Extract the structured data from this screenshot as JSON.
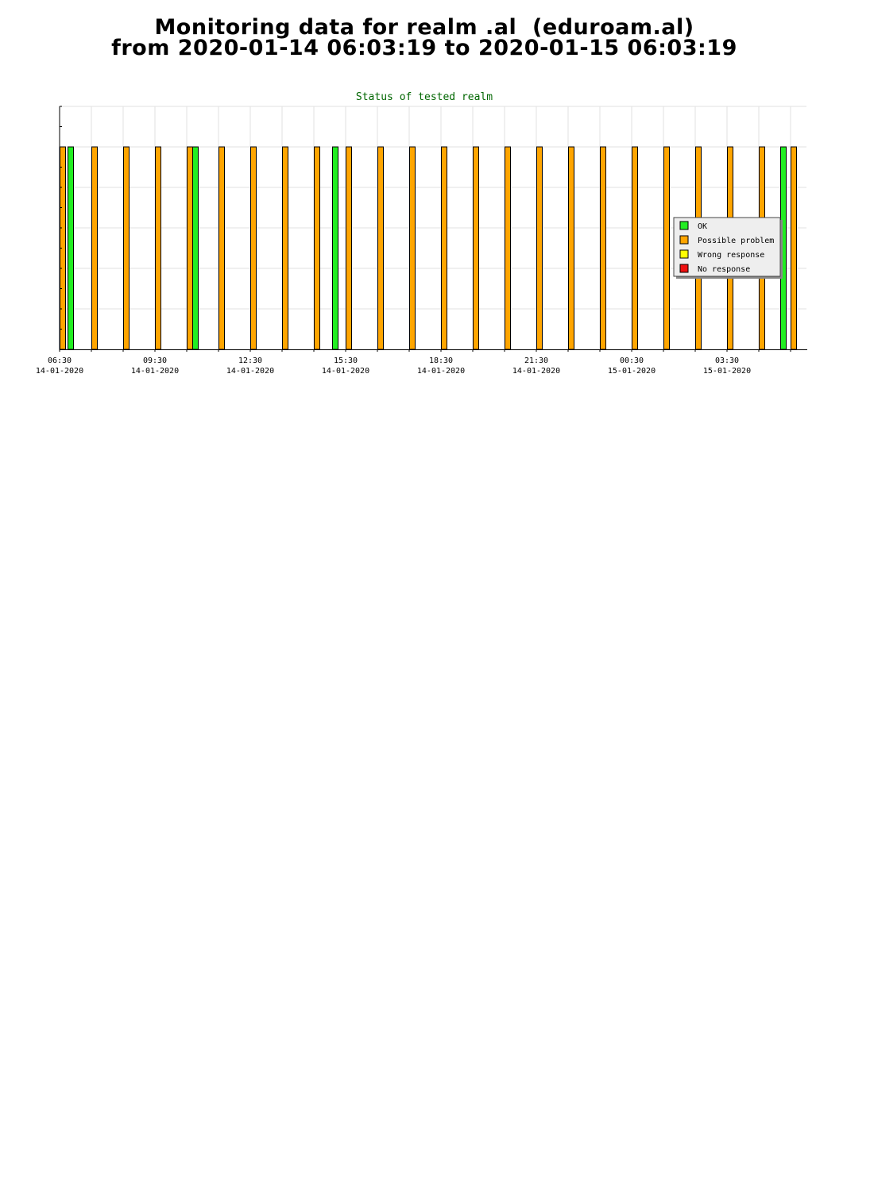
{
  "header": {
    "title_line1": "Monitoring data for realm .al  (eduroam.al)",
    "title_line2": "from 2020-01-14 06:03:19 to 2020-01-15 06:03:19"
  },
  "chart_data": {
    "type": "bar",
    "title": "Status of tested realm",
    "x_range": [
      "2020-01-14 06:30",
      "2020-01-15 06:00"
    ],
    "ylim": [
      0,
      1.2
    ],
    "grid": true,
    "legend_position": "right",
    "x_ticks": [
      {
        "time": "06:30",
        "date": "14-01-2020",
        "x": "2020-01-14 06:30"
      },
      {
        "time": "09:30",
        "date": "14-01-2020",
        "x": "2020-01-14 09:30"
      },
      {
        "time": "12:30",
        "date": "14-01-2020",
        "x": "2020-01-14 12:30"
      },
      {
        "time": "15:30",
        "date": "14-01-2020",
        "x": "2020-01-14 15:30"
      },
      {
        "time": "18:30",
        "date": "14-01-2020",
        "x": "2020-01-14 18:30"
      },
      {
        "time": "21:30",
        "date": "14-01-2020",
        "x": "2020-01-14 21:30"
      },
      {
        "time": "00:30",
        "date": "15-01-2020",
        "x": "2020-01-15 00:30"
      },
      {
        "time": "03:30",
        "date": "15-01-2020",
        "x": "2020-01-15 03:30"
      }
    ],
    "series": [
      {
        "name": "OK",
        "color": "#22ee22",
        "points": [
          {
            "x": "2020-01-14 06:45",
            "y": 1
          },
          {
            "x": "2020-01-14 10:40",
            "y": 1
          },
          {
            "x": "2020-01-14 15:05",
            "y": 1
          },
          {
            "x": "2020-01-15 05:10",
            "y": 1
          }
        ]
      },
      {
        "name": "Possible problem",
        "color": "#ffa500",
        "points": [
          {
            "x": "2020-01-14 06:30",
            "y": 1
          },
          {
            "x": "2020-01-14 07:30",
            "y": 1
          },
          {
            "x": "2020-01-14 08:30",
            "y": 1
          },
          {
            "x": "2020-01-14 09:30",
            "y": 1
          },
          {
            "x": "2020-01-14 10:30",
            "y": 1
          },
          {
            "x": "2020-01-14 11:30",
            "y": 1
          },
          {
            "x": "2020-01-14 12:30",
            "y": 1
          },
          {
            "x": "2020-01-14 13:30",
            "y": 1
          },
          {
            "x": "2020-01-14 14:30",
            "y": 1
          },
          {
            "x": "2020-01-14 15:30",
            "y": 1
          },
          {
            "x": "2020-01-14 16:30",
            "y": 1
          },
          {
            "x": "2020-01-14 17:30",
            "y": 1
          },
          {
            "x": "2020-01-14 18:30",
            "y": 1
          },
          {
            "x": "2020-01-14 19:30",
            "y": 1
          },
          {
            "x": "2020-01-14 20:30",
            "y": 1
          },
          {
            "x": "2020-01-14 21:30",
            "y": 1
          },
          {
            "x": "2020-01-14 22:30",
            "y": 1
          },
          {
            "x": "2020-01-14 23:30",
            "y": 1
          },
          {
            "x": "2020-01-15 00:30",
            "y": 1
          },
          {
            "x": "2020-01-15 01:30",
            "y": 1
          },
          {
            "x": "2020-01-15 02:30",
            "y": 1
          },
          {
            "x": "2020-01-15 03:30",
            "y": 1
          },
          {
            "x": "2020-01-15 04:30",
            "y": 1
          },
          {
            "x": "2020-01-15 05:30",
            "y": 1
          }
        ]
      },
      {
        "name": "Wrong response",
        "color": "#ffff00",
        "points": []
      },
      {
        "name": "No response",
        "color": "#ee1111",
        "points": []
      }
    ]
  }
}
